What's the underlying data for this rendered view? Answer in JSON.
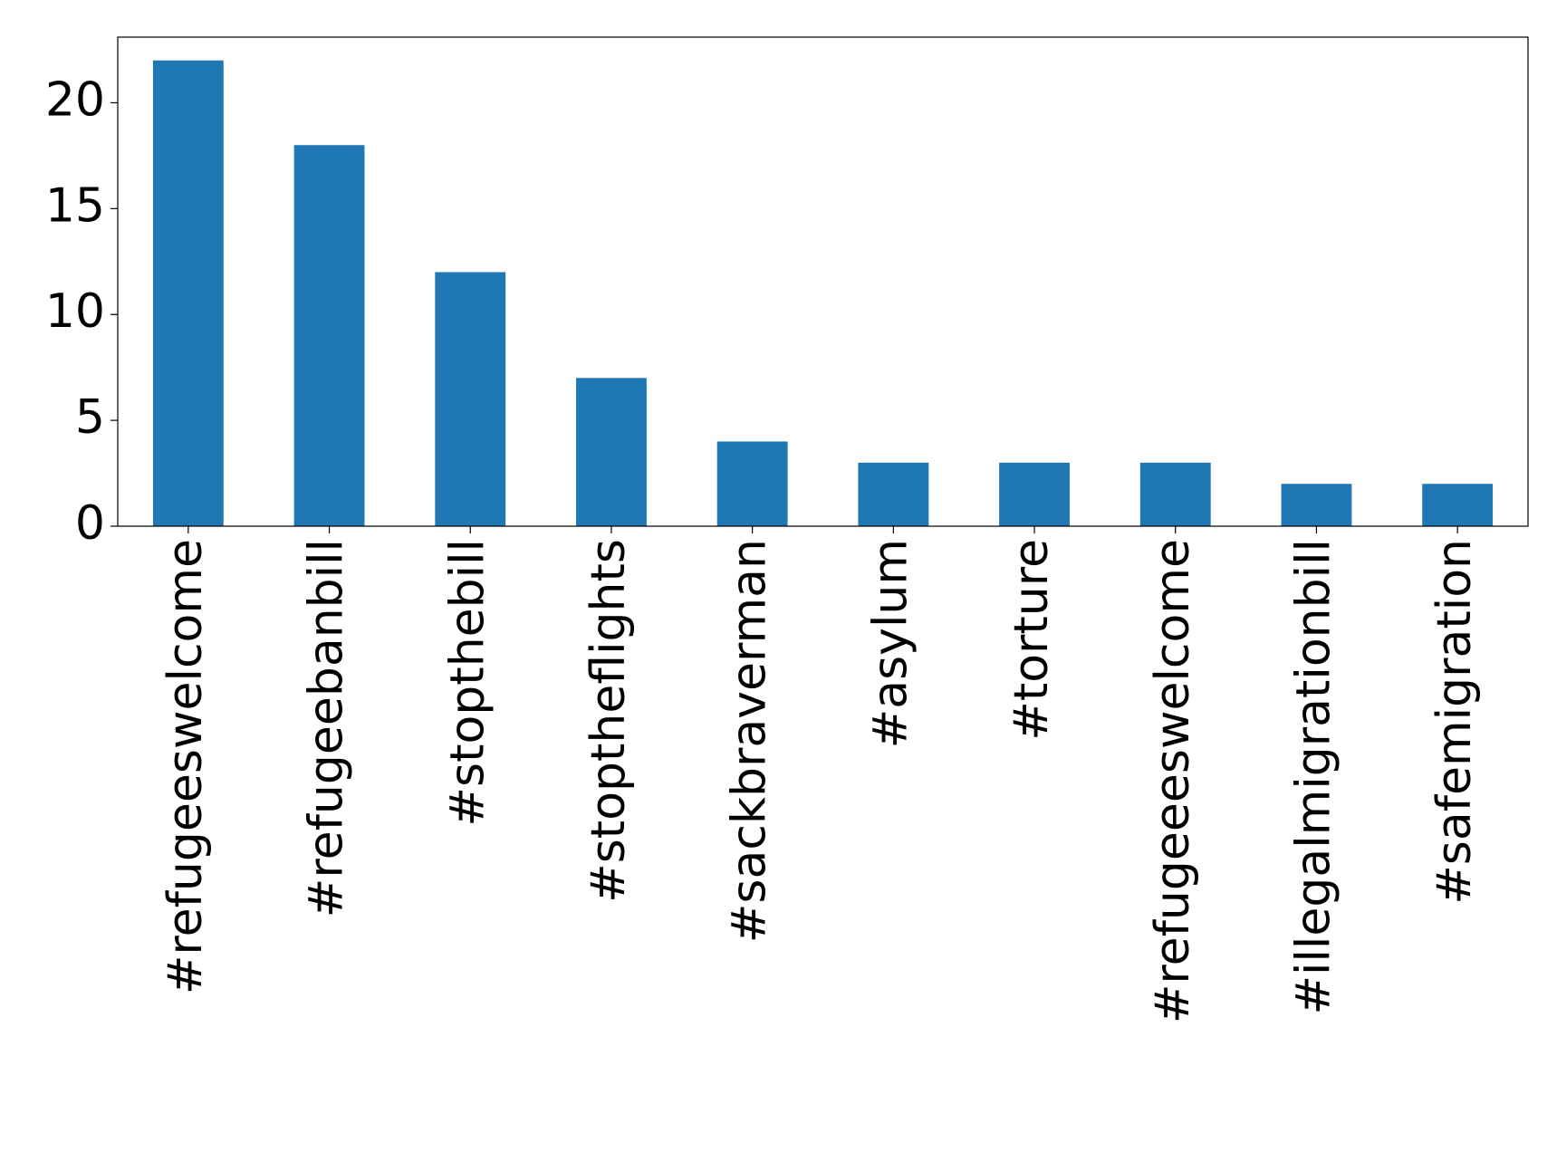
{
  "chart_data": {
    "type": "bar",
    "categories": [
      "#refugeeswelcome",
      "#refugeebanbill",
      "#stopthebill",
      "#stoptheflights",
      "#sackbraverman",
      "#asylum",
      "#torture",
      "#refugeeeswelcome",
      "#illegalmigrationbill",
      "#safemigration"
    ],
    "values": [
      22,
      18,
      12,
      7,
      4,
      3,
      3,
      3,
      2,
      2
    ],
    "color": "#1f77b4",
    "ylim": [
      0,
      23.1
    ],
    "yticks": [
      0,
      5,
      10,
      15,
      20
    ],
    "grid": false
  }
}
